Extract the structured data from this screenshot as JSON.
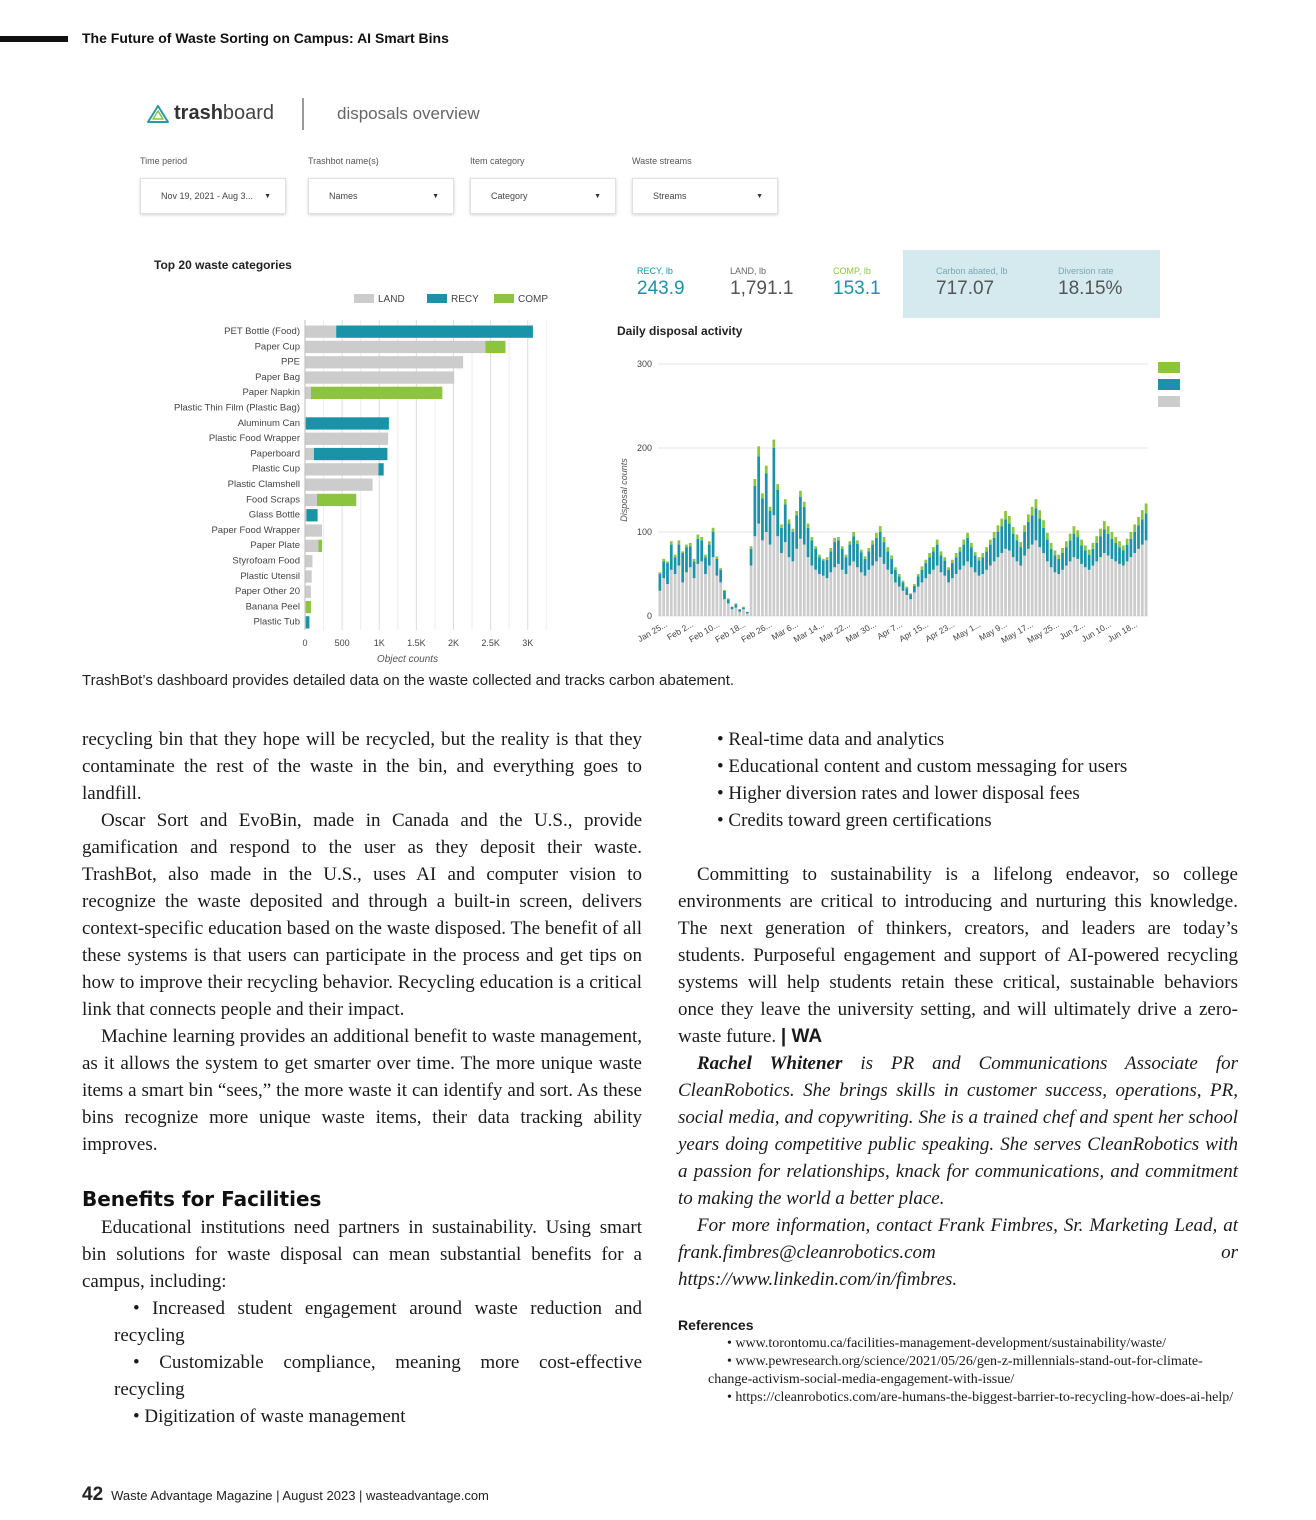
{
  "header": {
    "title": "The Future of Waste Sorting on Campus: AI Smart Bins"
  },
  "dashboard": {
    "logo_prefix": "trash",
    "logo_suffix": "board",
    "subtitle": "disposals overview",
    "filters": [
      {
        "label": "Time period",
        "value": "Nov 19, 2021 - Aug 3..."
      },
      {
        "label": "Trashbot name(s)",
        "value": "Names"
      },
      {
        "label": "Item category",
        "value": "Category"
      },
      {
        "label": "Waste streams",
        "value": "Streams"
      }
    ],
    "stats": [
      {
        "label": "RECY, lb",
        "value": "243.9"
      },
      {
        "label": "LAND, lb",
        "value": "1,791.1"
      },
      {
        "label": "COMP, lb",
        "value": "153.1"
      },
      {
        "label": "Carbon abated, lb",
        "value": "717.07"
      },
      {
        "label": "Diversion rate",
        "value": "18.15%"
      }
    ],
    "colors": {
      "land": "#cccccc",
      "recy": "#1a93a8",
      "comp": "#8cc43f"
    }
  },
  "chart_data": [
    {
      "type": "bar",
      "orientation": "horizontal",
      "stacked": true,
      "title": "Top 20 waste categories",
      "xlabel": "Object counts",
      "ylabel": "",
      "xlim": [
        0,
        3300
      ],
      "xticks": [
        "0",
        "500",
        "1K",
        "1.5K",
        "2K",
        "2.5K",
        "3K"
      ],
      "legend_position": "top",
      "categories": [
        "PET Bottle (Food)",
        "Paper Cup",
        "PPE",
        "Paper Bag",
        "Paper Napkin",
        "Plastic Thin Film (Plastic Bag)",
        "Aluminum Can",
        "Plastic Food Wrapper",
        "Paperboard",
        "Plastic Cup",
        "Plastic Clamshell",
        "Food Scraps",
        "Glass Bottle",
        "Paper Food Wrapper",
        "Paper Plate",
        "Styrofoam Food",
        "Plastic Utensil",
        "Paper Other 20",
        "Banana Peel",
        "Plastic Tub"
      ],
      "series": [
        {
          "name": "LAND",
          "values": [
            420,
            2430,
            2130,
            2010,
            80,
            0,
            10,
            1120,
            120,
            990,
            910,
            160,
            20,
            230,
            180,
            100,
            90,
            80,
            10,
            10
          ]
        },
        {
          "name": "RECY",
          "values": [
            2650,
            0,
            0,
            0,
            0,
            0,
            1120,
            0,
            990,
            70,
            0,
            0,
            150,
            0,
            0,
            0,
            0,
            0,
            0,
            50
          ]
        },
        {
          "name": "COMP",
          "values": [
            0,
            270,
            0,
            0,
            1770,
            0,
            0,
            0,
            0,
            0,
            0,
            530,
            0,
            0,
            50,
            0,
            0,
            0,
            70,
            0
          ]
        }
      ]
    },
    {
      "type": "bar",
      "stacked": true,
      "title": "Daily disposal activity",
      "xlabel": "",
      "ylabel": "Disposal counts",
      "ylim": [
        0,
        300
      ],
      "yticks": [
        0,
        100,
        200,
        300
      ],
      "x_tick_labels": [
        "Jan 25...",
        "Feb 2...",
        "Feb 10...",
        "Feb 18...",
        "Feb 26...",
        "Mar 6...",
        "Mar 14...",
        "Mar 22...",
        "Mar 30...",
        "Apr 7...",
        "Apr 15...",
        "Apr 23...",
        "May 1...",
        "May 9...",
        "May 17...",
        "May 25...",
        "Jun 2...",
        "Jun 10...",
        "Jun 18..."
      ],
      "legend_entries": [
        ".",
        ".",
        "."
      ],
      "series": [
        {
          "name": "LAND",
          "values": [
            30,
            45,
            38,
            55,
            50,
            60,
            40,
            52,
            58,
            45,
            62,
            65,
            50,
            60,
            70,
            48,
            40,
            20,
            15,
            8,
            10,
            5,
            8,
            3,
            60,
            95,
            110,
            90,
            100,
            85,
            120,
            95,
            75,
            88,
            70,
            65,
            80,
            92,
            85,
            70,
            60,
            55,
            50,
            48,
            45,
            52,
            58,
            62,
            55,
            50,
            60,
            65,
            58,
            52,
            48,
            55,
            60,
            65,
            70,
            62,
            55,
            50,
            40,
            35,
            30,
            25,
            20,
            28,
            35,
            40,
            45,
            50,
            55,
            60,
            52,
            48,
            40,
            45,
            50,
            55,
            60,
            65,
            58,
            52,
            48,
            50,
            55,
            60,
            65,
            70,
            75,
            80,
            78,
            70,
            65,
            60,
            72,
            80,
            85,
            90,
            82,
            75,
            65,
            58,
            52,
            50,
            55,
            60,
            65,
            70,
            68,
            62,
            58,
            55,
            60,
            65,
            70,
            75,
            72,
            68,
            65,
            62,
            60,
            65,
            70,
            75,
            80,
            85,
            90
          ]
        },
        {
          "name": "RECY",
          "values": [
            20,
            20,
            25,
            30,
            20,
            25,
            35,
            30,
            25,
            20,
            30,
            25,
            20,
            25,
            30,
            20,
            15,
            10,
            5,
            3,
            4,
            3,
            2,
            2,
            20,
            60,
            80,
            50,
            70,
            40,
            80,
            55,
            30,
            45,
            40,
            35,
            40,
            50,
            45,
            35,
            30,
            25,
            20,
            18,
            22,
            25,
            30,
            28,
            25,
            20,
            25,
            30,
            28,
            24,
            20,
            22,
            25,
            28,
            30,
            26,
            22,
            18,
            15,
            12,
            10,
            8,
            6,
            8,
            12,
            15,
            18,
            20,
            22,
            25,
            20,
            18,
            15,
            18,
            20,
            22,
            25,
            28,
            24,
            20,
            18,
            20,
            22,
            25,
            28,
            30,
            32,
            35,
            32,
            28,
            25,
            22,
            28,
            32,
            35,
            38,
            34,
            30,
            26,
            22,
            20,
            18,
            20,
            22,
            25,
            28,
            26,
            22,
            20,
            18,
            20,
            22,
            25,
            28,
            26,
            24,
            22,
            20,
            18,
            20,
            22,
            25,
            28,
            30,
            32
          ]
        },
        {
          "name": "COMP",
          "values": [
            2,
            3,
            2,
            4,
            3,
            5,
            2,
            3,
            4,
            3,
            5,
            4,
            3,
            4,
            5,
            3,
            2,
            1,
            1,
            0,
            1,
            0,
            1,
            0,
            3,
            8,
            12,
            6,
            9,
            5,
            10,
            7,
            4,
            6,
            5,
            4,
            5,
            7,
            6,
            5,
            4,
            3,
            3,
            2,
            3,
            4,
            5,
            4,
            3,
            3,
            4,
            5,
            4,
            3,
            3,
            4,
            5,
            6,
            7,
            6,
            5,
            4,
            3,
            3,
            2,
            2,
            1,
            2,
            3,
            4,
            4,
            5,
            5,
            6,
            5,
            4,
            3,
            4,
            5,
            5,
            6,
            6,
            5,
            4,
            4,
            5,
            5,
            6,
            7,
            8,
            9,
            10,
            9,
            8,
            7,
            6,
            8,
            9,
            10,
            11,
            10,
            9,
            8,
            7,
            6,
            5,
            6,
            7,
            8,
            9,
            8,
            7,
            6,
            6,
            7,
            8,
            9,
            10,
            9,
            8,
            7,
            7,
            6,
            7,
            8,
            9,
            10,
            11,
            12
          ]
        }
      ]
    }
  ],
  "caption": "TrashBot’s dashboard provides detailed data on the waste collected and tracks carbon abatement.",
  "article": {
    "left_p1": "recycling bin that they hope will be recycled, but the reality is that they contaminate the rest of the waste in the bin, and everything goes to landfill.",
    "left_p2": "Oscar Sort and EvoBin, made in Canada and the U.S., provide gamification and respond to the user as they deposit their waste. TrashBot, also made in the U.S., uses AI and computer vision to recognize the waste deposited and through a built-in screen, delivers context-specific education based on the waste disposed. The benefit of all these systems is that users can participate in the process and get tips on how to improve their recycling behavior. Recycling education is a critical link that connects people and their impact.",
    "left_p3": "Machine learning provides an additional benefit to waste management, as it allows the system to get smarter over time. The more unique waste items a smart bin “sees,” the more waste it can identify and sort. As these bins recognize more unique waste items, their data tracking ability improves.",
    "benefits_heading": "Benefits for Facilities",
    "benefits_intro": "Educational institutions need partners in sustainability. Using smart bin solutions for waste disposal can mean substantial benefits for a campus, including:",
    "benefits_list": [
      "• Increased student engagement around waste reduction and recycling",
      "• Customizable compliance, meaning more cost-effective recycling",
      "• Digitization of waste management"
    ],
    "right_list": [
      "• Real-time data and analytics",
      "• Educational content and custom messaging for users",
      "• Higher diversion rates and lower disposal fees",
      "• Credits toward green certifications"
    ],
    "right_p1": "Committing to sustainability is a lifelong endeavor, so college environments are critical to introducing and nurturing this knowledge. The next generation of thinkers, creators, and leaders are today’s students. Purposeful engagement and support of AI-powered recycling systems will help students retain these critical, sustainable behaviors once they leave the university setting, and will ultimately drive a zero-waste future.",
    "end_mark": "| WA",
    "author_name": "Rachel Whitener",
    "author_bio": " is PR and Communications Associate for CleanRobotics. She brings skills in customer success, operations, PR, social media, and copywriting. She is a trained chef and spent her school years doing competitive public speaking. She serves CleanRobotics with a passion for relationships, knack for communications, and commitment to making the world a better place.",
    "contact": "For more information, contact Frank Fimbres, Sr. Marketing Lead, at frank.fimbres@cleanrobotics.com or https://www.linkedin.com/in/fimbres.",
    "references_title": "References",
    "references": [
      "• www.torontomu.ca/facilities-management-development/sustainability/waste/",
      "• www.pewresearch.org/science/2021/05/26/gen-z-millennials-stand-out-for-climate-change-activism-social-media-engagement-with-issue/",
      "• https://cleanrobotics.com/are-humans-the-biggest-barrier-to-recycling-how-does-ai-help/"
    ]
  },
  "footer": {
    "page": "42",
    "text": "Waste Advantage Magazine | August 2023 | wasteadvantage.com"
  }
}
